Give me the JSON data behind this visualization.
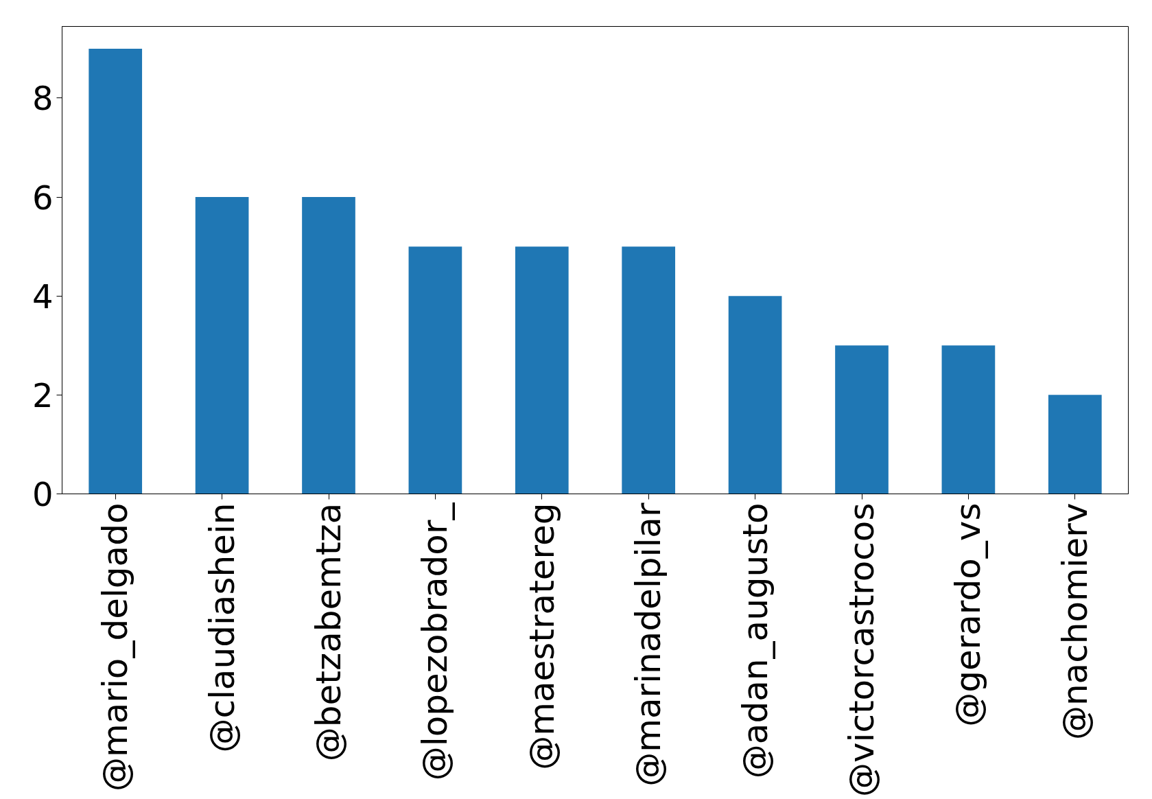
{
  "chart_data": {
    "type": "bar",
    "categories": [
      "@mario_delgado",
      "@claudiashein",
      "@betzabemtza",
      "@lopezobrador_",
      "@maestratereg",
      "@marinadelpilar",
      "@adan_augusto",
      "@victorcastrocos",
      "@gerardo_vs",
      "@nachomierv"
    ],
    "values": [
      9,
      6,
      6,
      5,
      5,
      5,
      4,
      3,
      3,
      2
    ],
    "color": "#1f77b4",
    "ylim": [
      0,
      9.45
    ],
    "yticks": [
      0,
      2,
      4,
      6,
      8
    ],
    "grid": false
  }
}
